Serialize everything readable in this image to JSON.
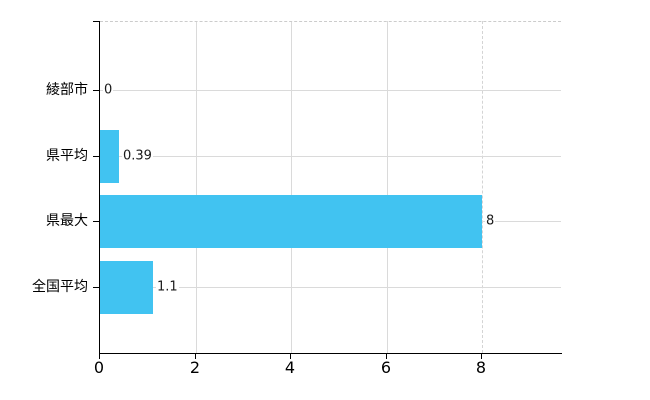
{
  "chart_data": {
    "type": "bar",
    "orientation": "horizontal",
    "title": "",
    "categories": [
      "綾部市",
      "県平均",
      "県最大",
      "全国平均"
    ],
    "values": [
      0,
      0.39,
      8,
      1.1
    ],
    "value_labels": [
      "0",
      "0.39",
      "8",
      "1.1"
    ],
    "x_ticks": [
      "0",
      "2",
      "4",
      "6",
      "8"
    ],
    "x_tick_values": [
      0,
      2,
      4,
      6,
      8
    ],
    "xlim": [
      0,
      9.65
    ],
    "grid": true,
    "legend": "none",
    "bar_color": "#41c3f1",
    "gridline_color": "#dadada",
    "axis_color": "#000000",
    "background_color": "#ffffff"
  }
}
